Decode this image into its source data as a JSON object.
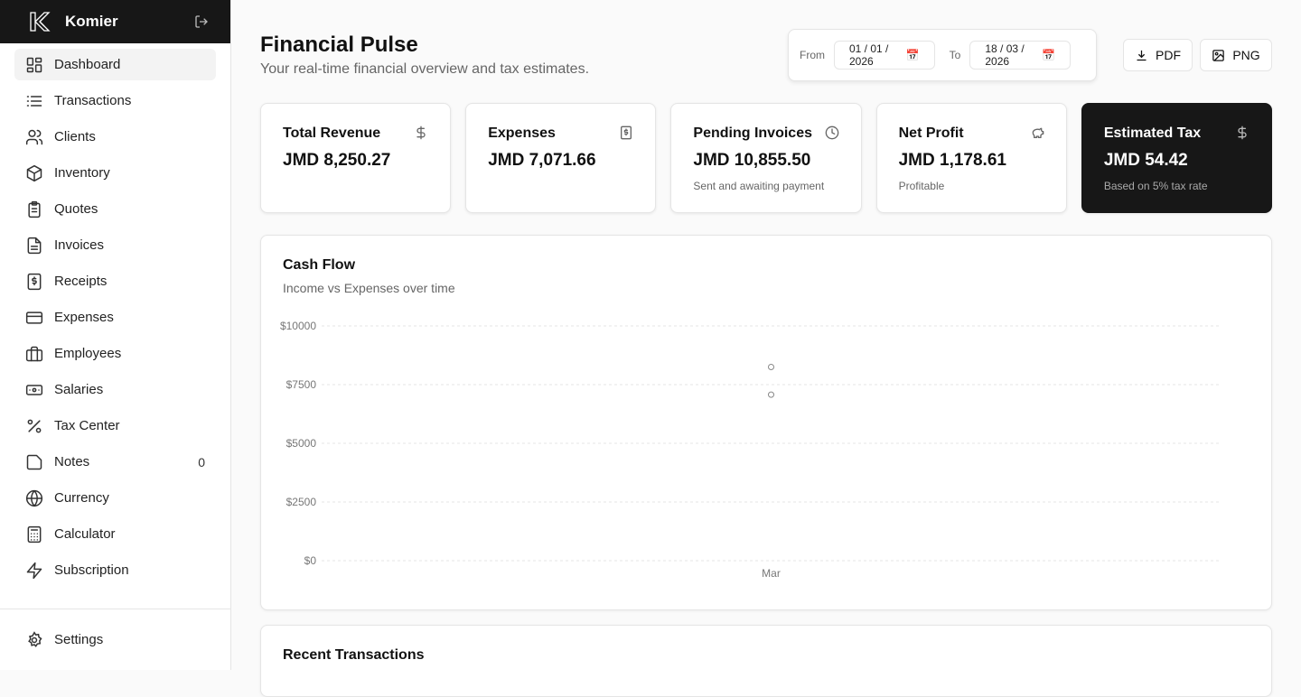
{
  "app": {
    "name": "Komier"
  },
  "sidebar": {
    "items": [
      {
        "label": "Dashboard",
        "icon": "layout-dashboard-icon",
        "active": true
      },
      {
        "label": "Transactions",
        "icon": "list-icon"
      },
      {
        "label": "Clients",
        "icon": "users-icon"
      },
      {
        "label": "Inventory",
        "icon": "package-icon"
      },
      {
        "label": "Quotes",
        "icon": "clipboard-icon"
      },
      {
        "label": "Invoices",
        "icon": "file-text-icon"
      },
      {
        "label": "Receipts",
        "icon": "receipt-icon"
      },
      {
        "label": "Expenses",
        "icon": "credit-card-icon"
      },
      {
        "label": "Employees",
        "icon": "briefcase-icon"
      },
      {
        "label": "Salaries",
        "icon": "banknote-icon"
      },
      {
        "label": "Tax Center",
        "icon": "percent-icon"
      },
      {
        "label": "Notes",
        "icon": "sticky-note-icon",
        "badge": "0"
      },
      {
        "label": "Currency",
        "icon": "globe-icon"
      },
      {
        "label": "Calculator",
        "icon": "calculator-icon"
      },
      {
        "label": "Subscription",
        "icon": "zap-icon"
      }
    ],
    "settings": "Settings"
  },
  "header": {
    "title": "Financial Pulse",
    "subtitle": "Your real-time financial overview and tax estimates.",
    "from_label": "From",
    "from_value": "01 / 01 / 2026",
    "to_label": "To",
    "to_value": "18 / 03 / 2026",
    "pdf": "PDF",
    "png": "PNG"
  },
  "cards": [
    {
      "title": "Total Revenue",
      "value": "JMD 8,250.27",
      "note": "",
      "icon": "dollar-icon"
    },
    {
      "title": "Expenses",
      "value": "JMD 7,071.66",
      "note": "",
      "icon": "receipt-icon"
    },
    {
      "title": "Pending Invoices",
      "value": "JMD 10,855.50",
      "note": "Sent and awaiting payment",
      "icon": "clock-icon"
    },
    {
      "title": "Net Profit",
      "value": "JMD 1,178.61",
      "note": "Profitable",
      "icon": "piggy-bank-icon"
    },
    {
      "title": "Estimated Tax",
      "value": "JMD 54.42",
      "note": "Based on 5% tax rate",
      "icon": "dollar-icon"
    }
  ],
  "cashflow": {
    "title": "Cash Flow",
    "subtitle": "Income vs Expenses over time"
  },
  "chart_data": {
    "type": "line",
    "categories": [
      "Mar"
    ],
    "series": [
      {
        "values": [
          8250.27
        ]
      },
      {
        "values": [
          7071.66
        ]
      }
    ],
    "ylim": [
      0,
      10000
    ],
    "yticks": [
      "$0",
      "$2500",
      "$5000",
      "$7500",
      "$10000"
    ],
    "grid": true
  },
  "recent": {
    "title": "Recent Transactions"
  }
}
